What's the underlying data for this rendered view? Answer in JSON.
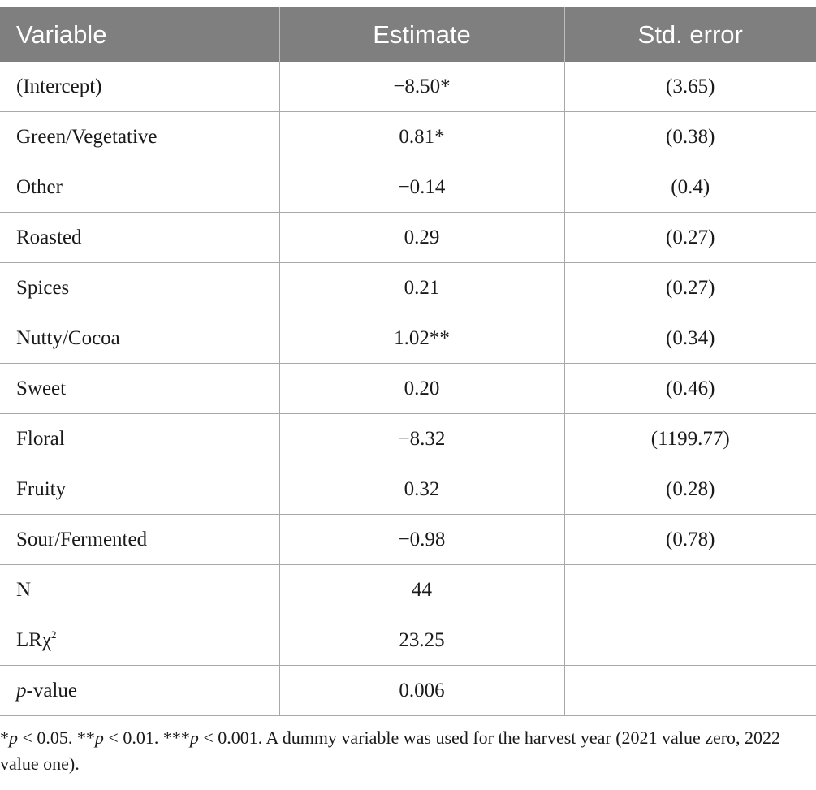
{
  "table": {
    "headers": [
      "Variable",
      "Estimate",
      "Std. error"
    ],
    "rows": [
      {
        "variable": "(Intercept)",
        "estimate": "−8.50*",
        "std_error": "(3.65)"
      },
      {
        "variable": "Green/Vegetative",
        "estimate": "0.81*",
        "std_error": "(0.38)"
      },
      {
        "variable": "Other",
        "estimate": "−0.14",
        "std_error": "(0.4)"
      },
      {
        "variable": "Roasted",
        "estimate": "0.29",
        "std_error": "(0.27)"
      },
      {
        "variable": "Spices",
        "estimate": "0.21",
        "std_error": "(0.27)"
      },
      {
        "variable": "Nutty/Cocoa",
        "estimate": "1.02**",
        "std_error": "(0.34)"
      },
      {
        "variable": "Sweet",
        "estimate": "0.20",
        "std_error": "(0.46)"
      },
      {
        "variable": "Floral",
        "estimate": "−8.32",
        "std_error": "(1199.77)"
      },
      {
        "variable": "Fruity",
        "estimate": "0.32",
        "std_error": "(0.28)"
      },
      {
        "variable": "Sour/Fermented",
        "estimate": "−0.98",
        "std_error": "(0.78)"
      }
    ],
    "stats": {
      "n_label": "N",
      "n_value": "44",
      "lr_label": "LRχ",
      "lr_sup": "2",
      "lr_value": "23.25",
      "p_label_italic": "p",
      "p_label_rest": "-value",
      "p_value": "0.006"
    }
  },
  "footnote": {
    "p1": "p",
    "t1": " < 0.05. **",
    "p2": "p",
    "t2": " < 0.01. ***",
    "p3": "p",
    "t3": " < 0.001. A dummy variable was used for the harvest year (2021 value zero, 2022 value one).",
    "lead": "*"
  }
}
